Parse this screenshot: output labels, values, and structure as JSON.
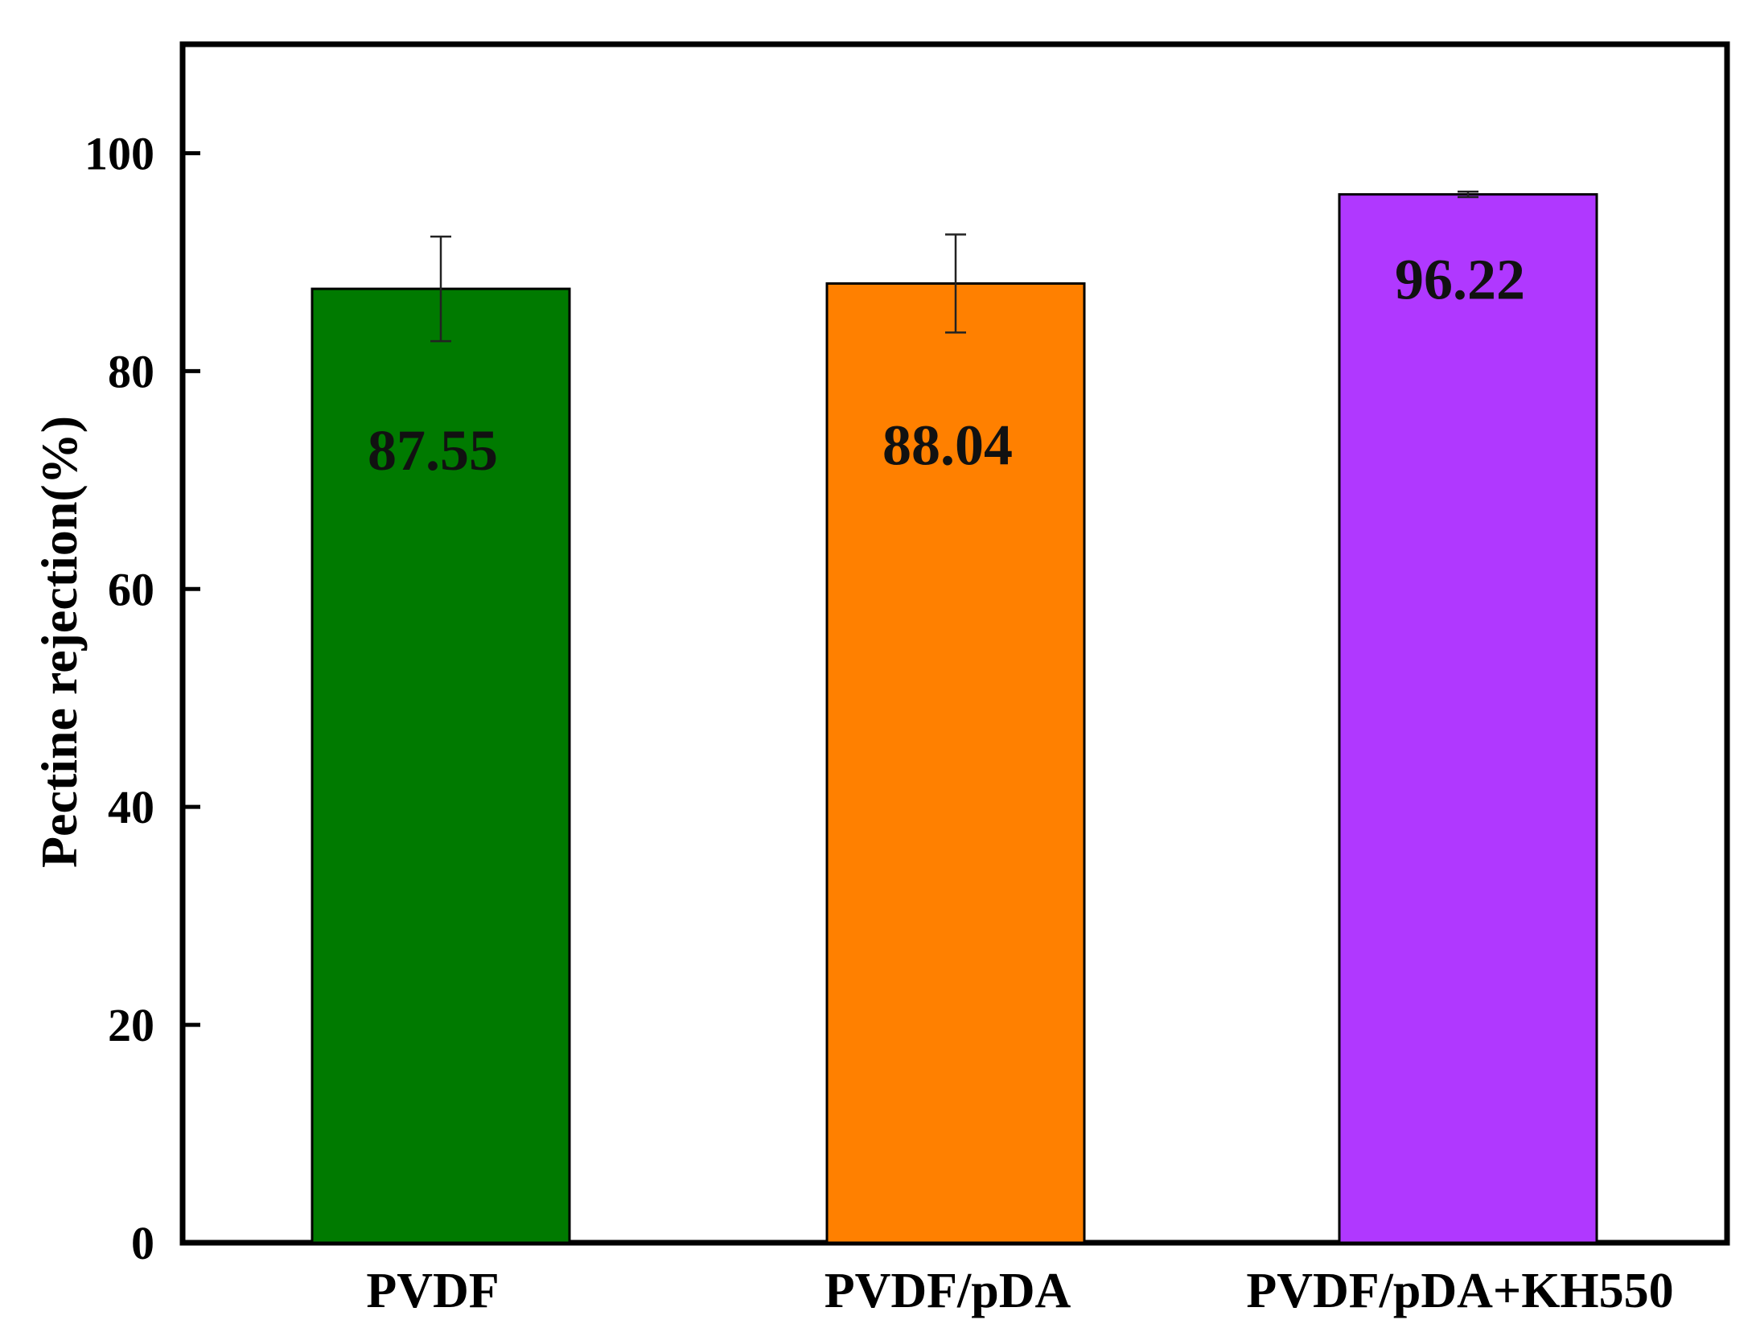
{
  "chart_data": {
    "type": "bar",
    "title": "",
    "xlabel": "",
    "ylabel": "Pectine rejection(%)",
    "ylim": [
      0,
      110
    ],
    "yticks": [
      0,
      20,
      40,
      60,
      80,
      100
    ],
    "categories": [
      "PVDF",
      "PVDF/pDA",
      "PVDF/pDA+KH550"
    ],
    "values": [
      87.55,
      88.04,
      96.22
    ],
    "value_labels": [
      "87.55",
      "88.04",
      "96.22"
    ],
    "errors": [
      4.8,
      4.5,
      0.25
    ],
    "colors": [
      "#007a00",
      "#ff8000",
      "#b038ff"
    ],
    "grid": false,
    "legend": "none"
  }
}
